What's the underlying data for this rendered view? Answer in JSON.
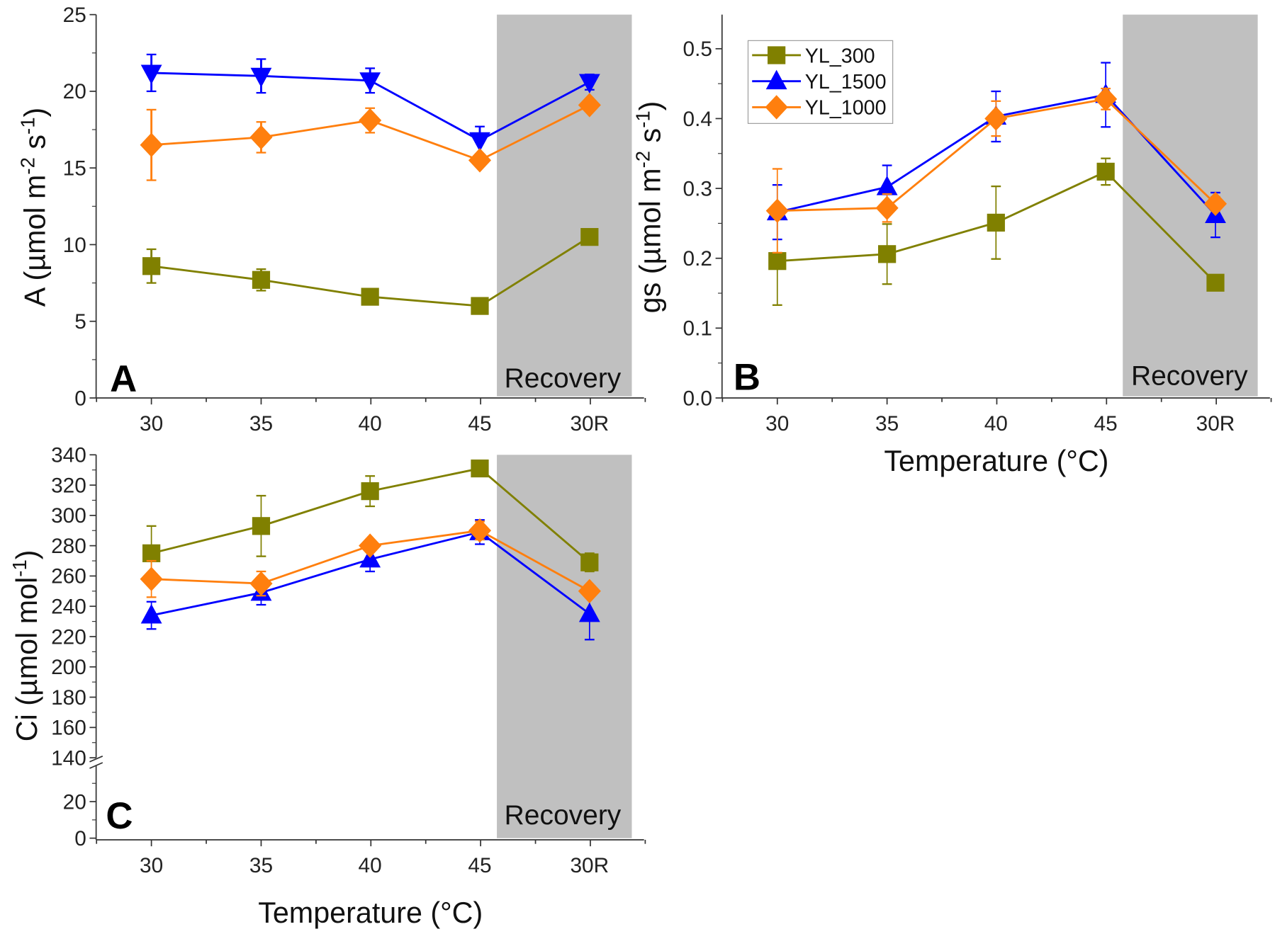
{
  "chart_data": [
    {
      "panel_label": "A",
      "type": "line",
      "categories": [
        "30",
        "35",
        "40",
        "45",
        "30R"
      ],
      "ylabel_parts": [
        "A (µmol m",
        "-2",
        " s",
        "-1",
        ")"
      ],
      "xlabel": "",
      "ylim": [
        0,
        25
      ],
      "yticks": [
        0,
        5,
        10,
        15,
        20,
        25
      ],
      "shade_label": "Recovery",
      "shade_from_category": "45",
      "grid": false,
      "series": [
        {
          "name": "YL_300",
          "color": "#808000",
          "marker": "square",
          "values": [
            8.6,
            7.7,
            6.6,
            6.0,
            10.5
          ],
          "errors": [
            1.1,
            0.7,
            0.3,
            0.3,
            0.3
          ]
        },
        {
          "name": "YL_1500",
          "color": "#0000ff",
          "marker": "triangle-down",
          "values": [
            21.2,
            21.0,
            20.7,
            16.8,
            20.6
          ],
          "errors": [
            1.2,
            1.1,
            0.8,
            0.9,
            0.5
          ]
        },
        {
          "name": "YL_1000",
          "color": "#ff7f0e",
          "marker": "diamond",
          "values": [
            16.5,
            17.0,
            18.1,
            15.5,
            19.1
          ],
          "errors": [
            2.3,
            1.0,
            0.8,
            0.3,
            0.3
          ]
        }
      ]
    },
    {
      "panel_label": "B",
      "type": "line",
      "categories": [
        "30",
        "35",
        "40",
        "45",
        "30R"
      ],
      "ylabel_parts": [
        "gs (µmol m",
        "-2",
        " s",
        "-1",
        ")"
      ],
      "xlabel": "Temperature (°C)",
      "ylim": [
        0,
        0.55
      ],
      "yticks": [
        "0.0",
        "0.1",
        "0.2",
        "0.3",
        "0.4",
        "0.5"
      ],
      "shade_label": "Recovery",
      "legend_position": "top-left",
      "grid": false,
      "series": [
        {
          "name": "YL_300",
          "color": "#808000",
          "marker": "square",
          "values": [
            0.196,
            0.206,
            0.251,
            0.324,
            0.165
          ],
          "errors": [
            0.063,
            0.043,
            0.052,
            0.019,
            0.005
          ]
        },
        {
          "name": "YL_1500",
          "color": "#0000ff",
          "marker": "triangle-up",
          "values": [
            0.266,
            0.302,
            0.403,
            0.434,
            0.262
          ],
          "errors": [
            0.039,
            0.031,
            0.036,
            0.046,
            0.032
          ]
        },
        {
          "name": "YL_1000",
          "color": "#ff7f0e",
          "marker": "diamond",
          "values": [
            0.268,
            0.272,
            0.4,
            0.428,
            0.278
          ],
          "errors": [
            0.06,
            0.02,
            0.025,
            0.015,
            0.01
          ]
        }
      ]
    },
    {
      "panel_label": "C",
      "type": "line",
      "categories": [
        "30",
        "35",
        "40",
        "45",
        "30R"
      ],
      "ylabel_parts": [
        "Ci (µmol mol",
        "-1",
        ")"
      ],
      "xlabel": "Temperature (°C)",
      "ylim": [
        0,
        340
      ],
      "axis_break": [
        40,
        140
      ],
      "yticks": [
        0,
        20,
        140,
        160,
        180,
        200,
        220,
        240,
        260,
        280,
        300,
        320,
        340
      ],
      "shade_label": "Recovery",
      "grid": false,
      "series": [
        {
          "name": "YL_300",
          "color": "#808000",
          "marker": "square",
          "values": [
            275,
            293,
            316,
            331,
            269
          ],
          "errors": [
            18,
            20,
            10,
            2,
            6
          ]
        },
        {
          "name": "YL_1500",
          "color": "#0000ff",
          "marker": "triangle-up",
          "values": [
            234,
            249,
            271,
            289,
            235
          ],
          "errors": [
            9,
            8,
            8,
            8,
            17
          ]
        },
        {
          "name": "YL_1000",
          "color": "#ff7f0e",
          "marker": "diamond",
          "values": [
            258,
            255,
            280,
            290,
            250
          ],
          "errors": [
            12,
            8,
            3,
            6,
            3
          ]
        }
      ]
    }
  ]
}
